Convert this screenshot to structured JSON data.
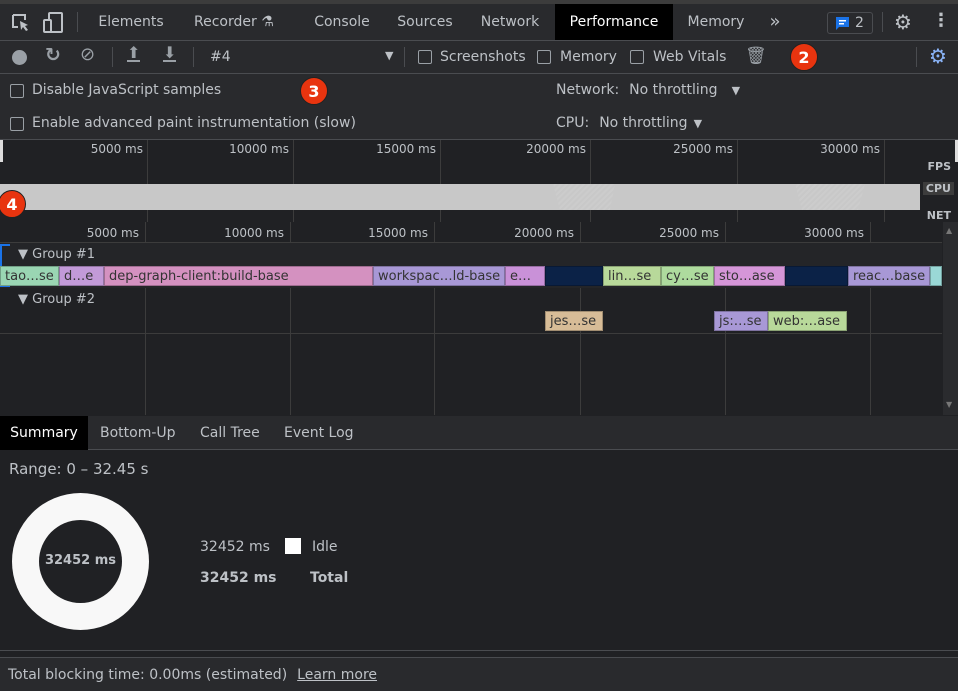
{
  "tabs": {
    "elements": "Elements",
    "recorder": "Recorder",
    "console": "Console",
    "sources": "Sources",
    "network": "Network",
    "performance": "Performance",
    "memory": "Memory",
    "more": "»",
    "issues_count": "2"
  },
  "toolbar": {
    "profile_select": "#4",
    "screenshots": "Screenshots",
    "memory": "Memory",
    "web_vitals": "Web Vitals"
  },
  "options": {
    "disable_js_samples": "Disable JavaScript samples",
    "advanced_paint": "Enable advanced paint instrumentation (slow)",
    "network_label": "Network:",
    "network_value": "No throttling",
    "cpu_label": "CPU:",
    "cpu_value": "No throttling"
  },
  "badges": {
    "b2": "2",
    "b3": "3",
    "b4": "4"
  },
  "overview": {
    "ticks": [
      "5000 ms",
      "10000 ms",
      "15000 ms",
      "20000 ms",
      "25000 ms",
      "30000 ms"
    ],
    "lanes": {
      "fps": "FPS",
      "cpu": "CPU",
      "net": "NET"
    }
  },
  "timeline": {
    "ticks": [
      "5000 ms",
      "10000 ms",
      "15000 ms",
      "20000 ms",
      "25000 ms",
      "30000 ms"
    ],
    "group1": {
      "label": "Group #1",
      "bars": [
        "tao…se",
        "d…e",
        "dep-graph-client:build-base",
        "workspac…ld-base",
        "e…",
        "",
        "lin…se",
        "cy…se",
        "sto…ase",
        "",
        "reac…base",
        ""
      ]
    },
    "group2": {
      "label": "Group #2",
      "bars": [
        "jes…se",
        "js:…se",
        "web:…ase"
      ]
    }
  },
  "bottom_tabs": {
    "summary": "Summary",
    "bottom_up": "Bottom-Up",
    "call_tree": "Call Tree",
    "event_log": "Event Log"
  },
  "summary": {
    "range": "Range: 0 – 32.45 s",
    "donut_total": "32452 ms",
    "rows": [
      {
        "value": "32452 ms",
        "label": "Idle",
        "color": "#ffffff"
      },
      {
        "value": "32452 ms",
        "label": "Total"
      }
    ]
  },
  "footer": {
    "tbt": "Total blocking time: 0.00ms (estimated)",
    "learn_more": "Learn more"
  },
  "colors": {
    "accent": "#8ab4f8",
    "badge": "#e8340f"
  }
}
